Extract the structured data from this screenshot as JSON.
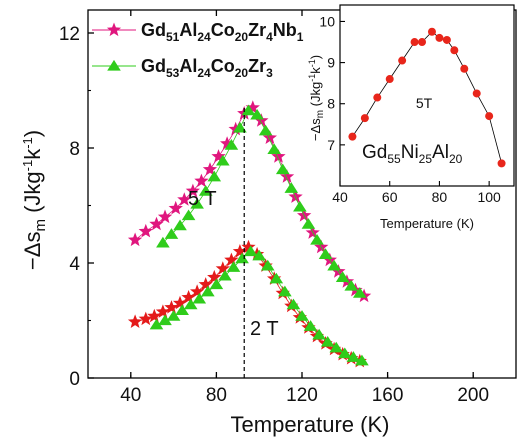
{
  "colors": {
    "pink": "#e0167e",
    "green": "#2fcc1b",
    "red": "#e41a1a",
    "inset_red": "#e8261b",
    "axis": "#000000"
  },
  "chart_data": [
    {
      "type": "scatter",
      "xlabel": "Temperature (K)",
      "ylabel": "-Δs_m (Jkg^-1k^-1)",
      "xlim": [
        20,
        220
      ],
      "ylim": [
        0,
        12.8
      ],
      "xticks": [
        "40",
        "80",
        "120",
        "160",
        "200"
      ],
      "yticks": [
        "0",
        "4",
        "8",
        "12"
      ],
      "grid": false,
      "legend_position": "top-left",
      "legend": [
        {
          "base": "Gd",
          "sub1": "51",
          "mid1": "Al",
          "sub2": "24",
          "mid2": "Co",
          "sub3": "20",
          "mid3": "Zr",
          "sub4": "4",
          "mid4": "Nb",
          "sub5": "1"
        },
        {
          "base": "Gd",
          "sub1": "53",
          "mid1": "Al",
          "sub2": "24",
          "mid2": "Co",
          "sub3": "20",
          "mid3": "Zr",
          "sub4": "3"
        }
      ],
      "annotations": [
        "5 T",
        "2 T"
      ],
      "reference_line_x": 93,
      "series": [
        {
          "marker": "star",
          "color": "pink",
          "field": "5 T",
          "x": [
            42,
            47,
            52,
            56,
            61,
            65,
            69,
            73,
            77,
            81,
            85,
            89,
            93,
            97,
            101,
            105,
            109,
            113,
            117,
            121,
            125,
            129,
            133,
            137,
            141,
            145,
            149
          ],
          "values": [
            4.8,
            5.1,
            5.35,
            5.6,
            5.9,
            6.2,
            6.5,
            6.85,
            7.25,
            7.7,
            8.15,
            8.65,
            9.2,
            9.4,
            8.95,
            8.35,
            7.7,
            7.0,
            6.3,
            5.65,
            5.05,
            4.55,
            4.1,
            3.7,
            3.35,
            3.05,
            2.85
          ]
        },
        {
          "marker": "triangle",
          "color": "green",
          "field": "5 T",
          "x": [
            55,
            59,
            63,
            67,
            71,
            75,
            79,
            83,
            87,
            91,
            95,
            99,
            103,
            107,
            111,
            115,
            119,
            123,
            127,
            131,
            135,
            139,
            143,
            147
          ],
          "values": [
            4.7,
            5.0,
            5.3,
            5.65,
            6.05,
            6.5,
            7.0,
            7.55,
            8.1,
            8.7,
            9.3,
            9.15,
            8.6,
            7.95,
            7.25,
            6.6,
            5.95,
            5.35,
            4.8,
            4.3,
            3.9,
            3.5,
            3.2,
            2.95
          ]
        },
        {
          "marker": "star",
          "color": "red",
          "field": "2 T",
          "x": [
            42,
            47,
            51,
            55,
            59,
            63,
            67,
            71,
            75,
            79,
            83,
            87,
            91,
            95,
            99,
            103,
            107,
            111,
            115,
            119,
            123,
            127,
            131,
            135,
            139,
            143,
            147
          ],
          "values": [
            1.95,
            2.05,
            2.15,
            2.3,
            2.45,
            2.6,
            2.8,
            3.0,
            3.25,
            3.5,
            3.8,
            4.1,
            4.4,
            4.55,
            4.3,
            3.9,
            3.45,
            2.95,
            2.5,
            2.1,
            1.75,
            1.45,
            1.2,
            1.0,
            0.82,
            0.68,
            0.58
          ]
        },
        {
          "marker": "triangle",
          "color": "green",
          "field": "2 T",
          "x": [
            52,
            56,
            60,
            64,
            68,
            72,
            76,
            80,
            84,
            88,
            92,
            96,
            100,
            104,
            108,
            112,
            116,
            120,
            124,
            128,
            132,
            136,
            140,
            144,
            148
          ],
          "values": [
            1.85,
            2.0,
            2.15,
            2.35,
            2.55,
            2.75,
            3.0,
            3.25,
            3.55,
            3.85,
            4.15,
            4.4,
            4.25,
            3.9,
            3.45,
            3.0,
            2.55,
            2.15,
            1.8,
            1.5,
            1.25,
            1.05,
            0.85,
            0.72,
            0.6
          ]
        }
      ]
    },
    {
      "type": "line",
      "xlabel": "Temperature (K)",
      "ylabel": "-Δs_m (Jkg^-1k^-1)",
      "xlim": [
        40,
        110
      ],
      "ylim": [
        6,
        10.4
      ],
      "xticks": [
        "40",
        "60",
        "80",
        "100"
      ],
      "yticks": [
        "7",
        "8",
        "9",
        "10"
      ],
      "annotation": "5T",
      "compound": {
        "base": "Gd",
        "sub1": "55",
        "mid1": "Ni",
        "sub2": "25",
        "mid2": "Al",
        "sub3": "20"
      },
      "series": [
        {
          "marker": "circle",
          "color": "inset_red",
          "x": [
            45,
            50,
            55,
            60,
            65,
            70,
            73,
            77,
            80,
            83,
            86,
            90,
            95,
            100,
            105
          ],
          "values": [
            7.2,
            7.65,
            8.15,
            8.6,
            9.05,
            9.5,
            9.5,
            9.75,
            9.6,
            9.55,
            9.3,
            8.85,
            8.25,
            7.7,
            6.55
          ]
        }
      ]
    }
  ]
}
